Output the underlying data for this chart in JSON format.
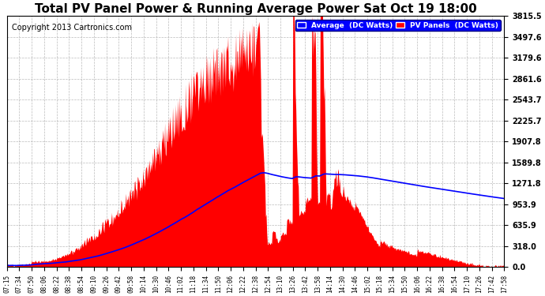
{
  "title": "Total PV Panel Power & Running Average Power Sat Oct 19 18:00",
  "copyright": "Copyright 2013 Cartronics.com",
  "ylabel_right_values": [
    0.0,
    318.0,
    635.9,
    953.9,
    1271.8,
    1589.8,
    1907.8,
    2225.7,
    2543.7,
    2861.6,
    3179.6,
    3497.6,
    3815.5
  ],
  "max_power": 3815.5,
  "background_color": "#ffffff",
  "fill_color": "#ff0000",
  "avg_line_color": "#0000ff",
  "grid_color": "#aaaaaa",
  "title_fontsize": 11,
  "copyright_fontsize": 7,
  "x_tick_labels": [
    "07:15",
    "07:34",
    "07:50",
    "08:06",
    "08:22",
    "08:38",
    "08:54",
    "09:10",
    "09:26",
    "09:42",
    "09:58",
    "10:14",
    "10:30",
    "10:46",
    "11:02",
    "11:18",
    "11:34",
    "11:50",
    "12:06",
    "12:22",
    "12:38",
    "12:54",
    "13:10",
    "13:26",
    "13:42",
    "13:58",
    "14:14",
    "14:30",
    "14:46",
    "15:02",
    "15:18",
    "15:34",
    "15:50",
    "16:06",
    "16:22",
    "16:38",
    "16:54",
    "17:10",
    "17:26",
    "17:42",
    "17:58"
  ],
  "legend_avg_label": "Average  (DC Watts)",
  "legend_pv_label": "PV Panels  (DC Watts)"
}
